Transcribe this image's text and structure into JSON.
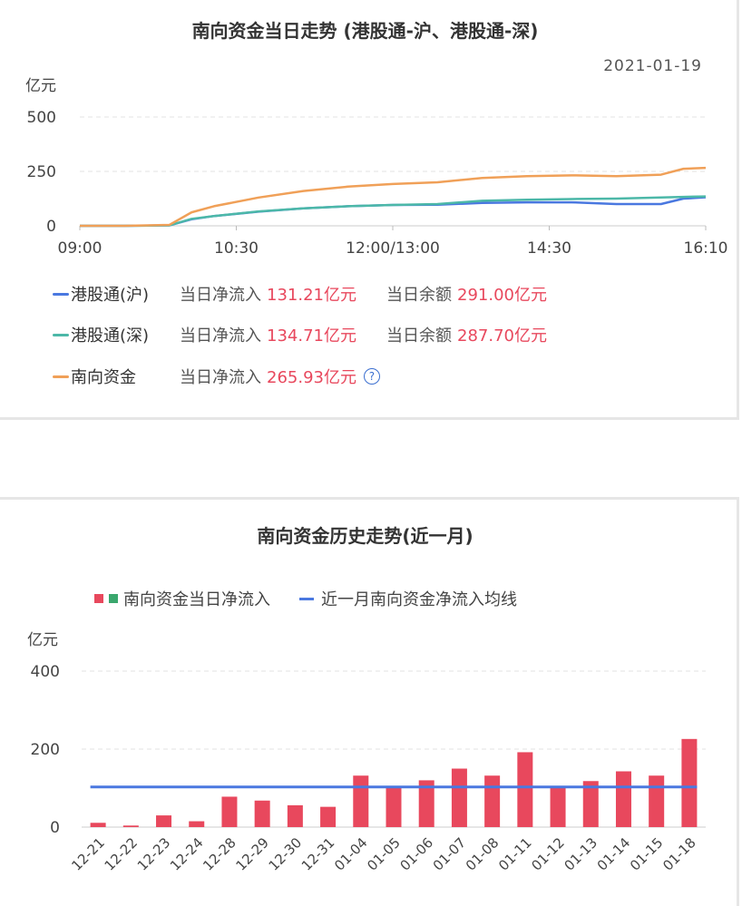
{
  "intraday": {
    "title": "南向资金当日走势 (港股通-沪、港股通-深)",
    "date": "2021-01-19",
    "unit": "亿元",
    "legend": [
      {
        "name": "港股通(沪)",
        "color": "#4a78e0",
        "flow_label": "当日净流入",
        "flow_value": "131.21亿元",
        "bal_label": "当日余额",
        "bal_value": "291.00亿元"
      },
      {
        "name": "港股通(深)",
        "color": "#4cb8a8",
        "flow_label": "当日净流入",
        "flow_value": "134.71亿元",
        "bal_label": "当日余额",
        "bal_value": "287.70亿元"
      },
      {
        "name": "南向资金",
        "color": "#f0a058",
        "flow_label": "当日净流入",
        "flow_value": "265.93亿元",
        "help_icon": "question-circle-icon"
      }
    ]
  },
  "history": {
    "title": "南向资金历史走势(近一月)",
    "unit": "亿元",
    "legend_bar": "南向资金当日净流入",
    "legend_line": "近一月南向资金净流入均线",
    "bar_color": "#e8485d",
    "bar_color_negative": "#3aa76d",
    "avg_color": "#4a78e0"
  },
  "chart_data": [
    {
      "type": "line",
      "title": "南向资金当日走势 (港股通-沪、港股通-深)",
      "ylabel": "亿元",
      "ylim": [
        0,
        500
      ],
      "yticks": [
        0,
        250,
        500
      ],
      "xticks": [
        "09:00",
        "10:30",
        "12:00/13:00",
        "14:30",
        "16:10"
      ],
      "x_minutes": [
        0,
        30,
        60,
        75,
        90,
        120,
        150,
        180,
        210,
        240,
        270,
        300,
        330,
        360,
        390,
        405,
        420
      ],
      "series": [
        {
          "name": "港股通(沪)",
          "color": "#4a78e0",
          "values": [
            0,
            0,
            2,
            30,
            45,
            65,
            80,
            90,
            96,
            97,
            105,
            108,
            108,
            100,
            100,
            125,
            131
          ]
        },
        {
          "name": "港股通(深)",
          "color": "#4cb8a8",
          "values": [
            0,
            0,
            2,
            32,
            45,
            66,
            80,
            90,
            96,
            100,
            115,
            120,
            123,
            125,
            130,
            133,
            135
          ]
        },
        {
          "name": "南向资金",
          "color": "#f0a058",
          "values": [
            0,
            0,
            4,
            62,
            90,
            130,
            160,
            180,
            192,
            200,
            220,
            228,
            232,
            228,
            235,
            262,
            266
          ]
        }
      ]
    },
    {
      "type": "bar",
      "title": "南向资金历史走势(近一月)",
      "ylabel": "亿元",
      "ylim": [
        0,
        400
      ],
      "yticks": [
        0,
        200,
        400
      ],
      "categories": [
        "12-21",
        "12-22",
        "12-23",
        "12-24",
        "12-28",
        "12-29",
        "12-30",
        "12-31",
        "01-04",
        "01-05",
        "01-06",
        "01-07",
        "01-08",
        "01-11",
        "01-12",
        "01-13",
        "01-14",
        "01-15",
        "01-18"
      ],
      "series": [
        {
          "name": "南向资金当日净流入",
          "color": "#e8485d",
          "values": [
            11,
            4,
            30,
            15,
            78,
            68,
            56,
            52,
            132,
            102,
            120,
            150,
            132,
            192,
            100,
            118,
            143,
            132,
            226
          ]
        },
        {
          "name": "近一月南向资金净流入均线",
          "color": "#4a78e0",
          "type": "line",
          "value": 103
        }
      ]
    }
  ]
}
